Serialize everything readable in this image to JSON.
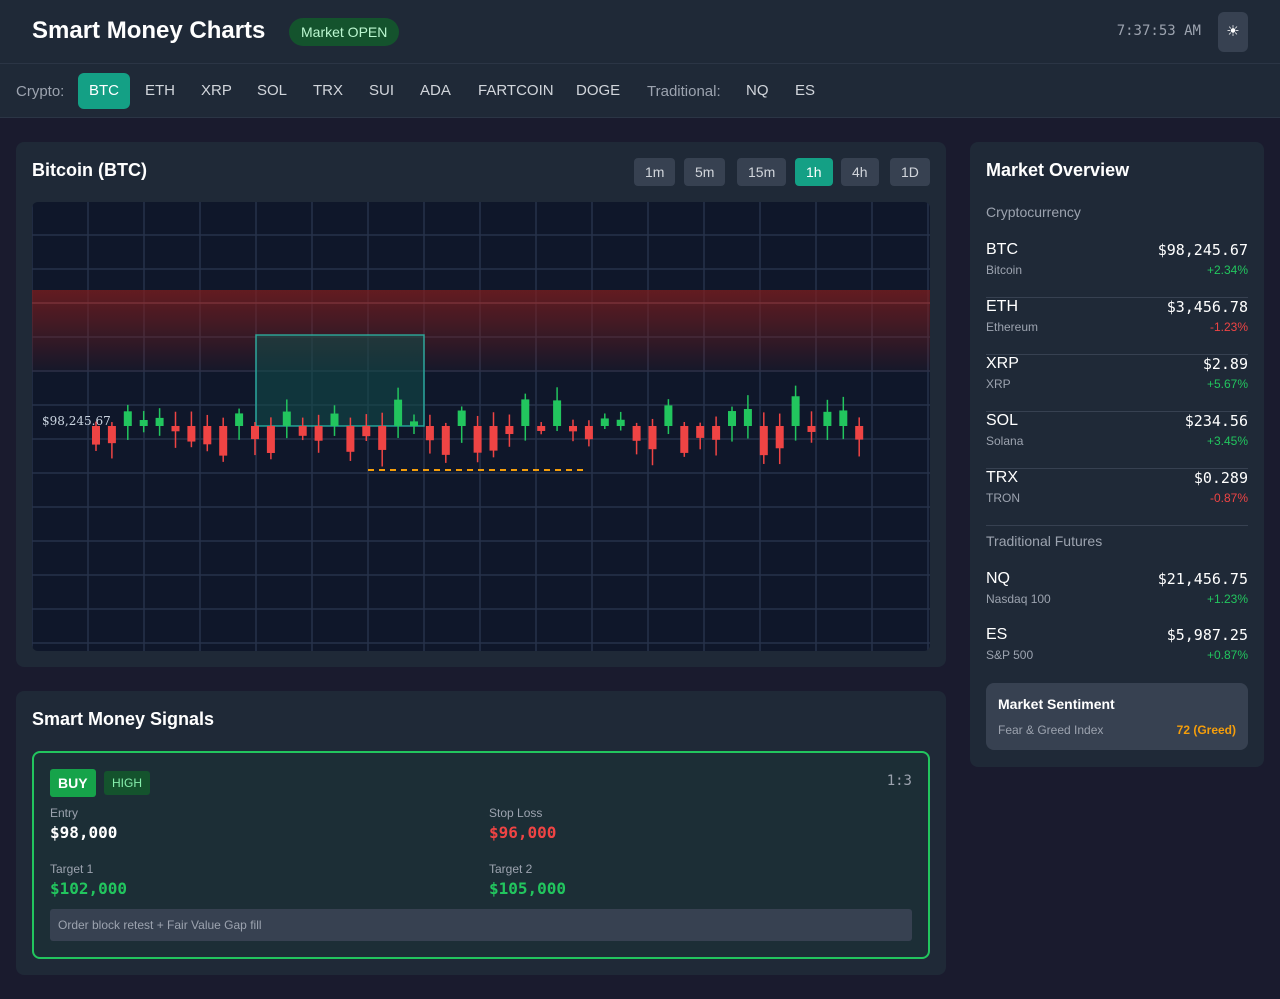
{
  "header": {
    "title": "Smart Money Charts",
    "market_status": "Market OPEN",
    "time": "7:37:53 AM",
    "theme_icon": "sun-icon",
    "theme_glyph": "☀"
  },
  "assets": {
    "crypto_label": "Crypto:",
    "crypto": [
      "BTC",
      "ETH",
      "XRP",
      "SOL",
      "TRX",
      "SUI",
      "ADA",
      "FARTCOIN",
      "DOGE"
    ],
    "traditional_label": "Traditional:",
    "traditional": [
      "NQ",
      "ES"
    ],
    "selected": "BTC"
  },
  "chart_panel": {
    "title": "Bitcoin (BTC)",
    "timeframes": [
      "1m",
      "5m",
      "15m",
      "1h",
      "4h",
      "1D"
    ],
    "selected_timeframe": "1h",
    "price_label": "$98,245.67"
  },
  "signals": {
    "title": "Smart Money Signals",
    "card": {
      "type": "BUY",
      "confidence": "HIGH",
      "risk_reward": "1:3",
      "entry_label": "Entry",
      "entry": "$98,000",
      "stop_loss_label": "Stop Loss",
      "stop_loss": "$96,000",
      "target1_label": "Target 1",
      "target1": "$102,000",
      "target2_label": "Target 2",
      "target2": "$105,000",
      "reason": "Order block retest + Fair Value Gap fill"
    }
  },
  "overview": {
    "title": "Market Overview",
    "crypto_label": "Cryptocurrency",
    "crypto": [
      {
        "symbol": "BTC",
        "name": "Bitcoin",
        "price": "$98,245.67",
        "change": "+2.34%"
      },
      {
        "symbol": "ETH",
        "name": "Ethereum",
        "price": "$3,456.78",
        "change": "-1.23%"
      },
      {
        "symbol": "XRP",
        "name": "XRP",
        "price": "$2.89",
        "change": "+5.67%"
      },
      {
        "symbol": "SOL",
        "name": "Solana",
        "price": "$234.56",
        "change": "+3.45%"
      },
      {
        "symbol": "TRX",
        "name": "TRON",
        "price": "$0.289",
        "change": "-0.87%"
      }
    ],
    "traditional_label": "Traditional Futures",
    "traditional": [
      {
        "symbol": "NQ",
        "name": "Nasdaq 100",
        "price": "$21,456.75",
        "change": "+1.23%"
      },
      {
        "symbol": "ES",
        "name": "S&P 500",
        "price": "$5,987.25",
        "change": "+0.87%"
      }
    ],
    "sentiment": {
      "title": "Market Sentiment",
      "label": "Fear & Greed Index",
      "value": "72 (Greed)"
    }
  },
  "colors": {
    "accent": "#14a085",
    "up": "#22c55e",
    "down": "#ef4444",
    "warning": "#f59e0b"
  }
}
